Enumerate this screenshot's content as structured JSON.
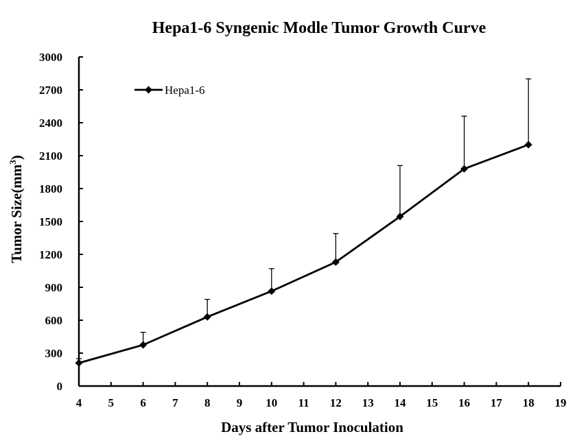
{
  "chart_data": {
    "type": "line",
    "title": "Hepa1-6 Syngenic Modle Tumor Growth  Curve",
    "xlabel": "Days after Tumor Inoculation",
    "ylabel_main": "Tumor Size(mm",
    "ylabel_sup": "3",
    "ylabel_close": ")",
    "xlim": [
      4,
      19
    ],
    "ylim": [
      0,
      3000
    ],
    "xticks": [
      "4",
      "5",
      "6",
      "7",
      "8",
      "9",
      "10",
      "11",
      "12",
      "13",
      "14",
      "15",
      "16",
      "17",
      "18",
      "19"
    ],
    "yticks": [
      "0",
      "300",
      "600",
      "900",
      "1200",
      "1500",
      "1800",
      "2100",
      "2400",
      "2700",
      "3000"
    ],
    "grid": false,
    "legend_position": "top-left",
    "series": [
      {
        "name": "Hepa1-6",
        "color": "#000000",
        "marker": "diamond",
        "x": [
          4,
          6,
          8,
          10,
          12,
          14,
          16,
          18
        ],
        "y": [
          210,
          375,
          630,
          865,
          1130,
          1545,
          1980,
          2200
        ],
        "error_upper": [
          40,
          115,
          160,
          205,
          260,
          465,
          480,
          600
        ]
      }
    ]
  }
}
